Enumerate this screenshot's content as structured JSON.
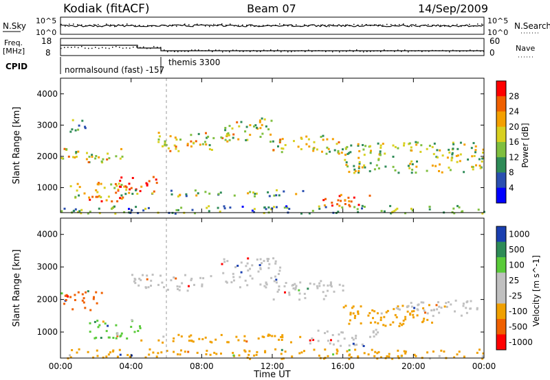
{
  "header": {
    "station": "Kodiak (fitACF)",
    "beam": "Beam 07",
    "date": "14/Sep/2009"
  },
  "aux_panels": {
    "nsky": {
      "label": "N.Sky",
      "ticks": [
        "10^5",
        "10^0"
      ],
      "right_label": "N.Search",
      "right_ticks": [
        "10^5",
        "10^0"
      ]
    },
    "freq": {
      "label_line1": "Freq.",
      "label_line2": "[MHz]",
      "ticks": [
        "18",
        "8"
      ],
      "right_label": "Nave",
      "right_ticks": [
        "60",
        "0"
      ]
    },
    "cpid": {
      "label": "CPID",
      "segments": [
        "normalsound (fast) -157",
        "themis 3300"
      ]
    }
  },
  "chart_data": [
    {
      "type": "heatmap",
      "name": "power",
      "xlabel": "Time UT",
      "ylabel": "Slant Range [km]",
      "x_ticks": [
        "00:00",
        "04:00",
        "08:00",
        "12:00",
        "16:00",
        "20:00",
        "00:00"
      ],
      "xlim_hours": [
        0,
        24
      ],
      "ylim": [
        200,
        4500
      ],
      "y_ticks": [
        1000,
        2000,
        3000,
        4000
      ],
      "colorbar": {
        "label": "Power [dB]",
        "ticks": [
          "28",
          "24",
          "20",
          "16",
          "12",
          "8",
          "4"
        ],
        "range": [
          0,
          30
        ],
        "colors": [
          "#0000ff",
          "#2a4fb0",
          "#2e8b57",
          "#7fbf3f",
          "#d8d020",
          "#f4a000",
          "#f06000",
          "#ff0000"
        ]
      },
      "regions": [
        {
          "t0": 0.0,
          "t1": 3.5,
          "r0": 1800,
          "r1": 2300,
          "level": 0.55
        },
        {
          "t0": 0.5,
          "t1": 4.0,
          "r0": 700,
          "r1": 1200,
          "level": 0.6
        },
        {
          "t0": 1.5,
          "t1": 3.5,
          "r0": 550,
          "r1": 800,
          "level": 0.95
        },
        {
          "t0": 3.0,
          "t1": 5.5,
          "r0": 850,
          "r1": 1400,
          "level": 0.92
        },
        {
          "t0": 0.2,
          "t1": 1.5,
          "r0": 2800,
          "r1": 3200,
          "level": 0.35
        },
        {
          "t0": 5.5,
          "t1": 9.5,
          "r0": 2200,
          "r1": 2800,
          "level": 0.6
        },
        {
          "t0": 9.0,
          "t1": 12.0,
          "r0": 2500,
          "r1": 3250,
          "level": 0.55
        },
        {
          "t0": 12.0,
          "t1": 16.0,
          "r0": 2100,
          "r1": 2700,
          "level": 0.55
        },
        {
          "t0": 16.0,
          "t1": 24.0,
          "r0": 1500,
          "r1": 2500,
          "level": 0.5
        },
        {
          "t0": 4.0,
          "t1": 14.0,
          "r0": 750,
          "r1": 950,
          "level": 0.45
        },
        {
          "t0": 14.5,
          "t1": 17.5,
          "r0": 400,
          "r1": 800,
          "level": 0.85
        },
        {
          "t0": 0.0,
          "t1": 24.0,
          "r0": 200,
          "r1": 450,
          "level": 0.35
        }
      ]
    },
    {
      "type": "heatmap",
      "name": "velocity",
      "xlabel": "Time UT",
      "ylabel": "Slant Range [km]",
      "x_ticks": [
        "00:00",
        "04:00",
        "08:00",
        "12:00",
        "16:00",
        "20:00",
        "00:00"
      ],
      "xlim_hours": [
        0,
        24
      ],
      "ylim": [
        200,
        4500
      ],
      "y_ticks": [
        1000,
        2000,
        3000,
        4000
      ],
      "colorbar": {
        "label": "Velocity [m s^-1]",
        "ticks": [
          "1000",
          "500",
          "100",
          "25",
          "-25",
          "-100",
          "-500",
          "-1000"
        ],
        "colors": [
          "#1a3fb0",
          "#2e8b57",
          "#5acb3a",
          "#c0c0c0",
          "#c0c0c0",
          "#f0a000",
          "#f06000",
          "#ff0000"
        ]
      },
      "regions": [
        {
          "t0": 0.0,
          "t1": 2.5,
          "r0": 1700,
          "r1": 2300,
          "vel": "-500"
        },
        {
          "t0": 1.5,
          "t1": 4.5,
          "r0": 800,
          "r1": 1400,
          "vel": "100"
        },
        {
          "t0": 4.0,
          "t1": 8.5,
          "r0": 2300,
          "r1": 2800,
          "vel": "25"
        },
        {
          "t0": 9.0,
          "t1": 12.5,
          "r0": 2400,
          "r1": 3300,
          "vel": "25"
        },
        {
          "t0": 12.0,
          "t1": 16.0,
          "r0": 2000,
          "r1": 2600,
          "vel": "25"
        },
        {
          "t0": 16.0,
          "t1": 21.0,
          "r0": 1200,
          "r1": 1900,
          "vel": "-100"
        },
        {
          "t0": 19.0,
          "t1": 24.0,
          "r0": 1500,
          "r1": 2000,
          "vel": "25"
        },
        {
          "t0": 4.5,
          "t1": 14.0,
          "r0": 700,
          "r1": 950,
          "vel": "-100"
        },
        {
          "t0": 14.0,
          "t1": 18.0,
          "r0": 600,
          "r1": 1100,
          "vel": "25"
        },
        {
          "t0": 0.0,
          "t1": 24.0,
          "r0": 200,
          "r1": 500,
          "vel": "-100"
        }
      ]
    }
  ]
}
